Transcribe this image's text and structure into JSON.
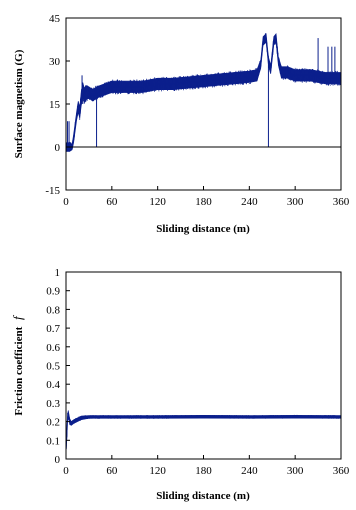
{
  "chart_data": [
    {
      "type": "line",
      "title": "",
      "xlabel": "Sliding distance (m)",
      "ylabel": "Surface magnetism (G)",
      "xlim": [
        0,
        360
      ],
      "ylim": [
        -15,
        45
      ],
      "xticks": [
        0,
        60,
        120,
        180,
        240,
        300,
        360
      ],
      "yticks": [
        -15,
        0,
        15,
        30,
        45
      ],
      "grid": false,
      "line_color": "#0b1f8c",
      "series": [
        {
          "x": [
            0,
            3,
            5,
            8,
            10,
            12,
            14,
            16,
            18,
            20,
            22,
            24,
            26,
            30,
            35,
            40,
            50,
            60,
            80,
            100,
            120,
            140,
            160,
            180,
            200,
            220,
            240,
            250,
            255,
            258,
            262,
            265,
            268,
            272,
            275,
            278,
            282,
            290,
            300,
            320,
            340,
            360
          ],
          "y": [
            0,
            0,
            0,
            0,
            3,
            7,
            11,
            14,
            12,
            17,
            20,
            18,
            19,
            19,
            18,
            19,
            20,
            21,
            21,
            21,
            22,
            22,
            22.5,
            23,
            23.5,
            24,
            24.5,
            25,
            29,
            37,
            38,
            30,
            27,
            37,
            38,
            30,
            26,
            26,
            25,
            25,
            24,
            24
          ],
          "band": [
            3,
            3,
            3,
            2,
            3,
            3,
            3,
            4,
            4,
            5,
            5,
            5,
            5,
            4,
            4,
            4,
            4,
            4,
            4,
            4,
            4,
            4,
            4,
            4,
            4,
            4,
            4,
            4,
            3,
            3,
            3,
            3,
            3,
            3,
            3,
            3,
            4,
            4,
            4,
            4,
            4,
            4
          ],
          "spikes": [
            {
              "x": 2,
              "y": 9
            },
            {
              "x": 4,
              "y": 9
            },
            {
              "x": 21,
              "y": 25
            },
            {
              "x": 22,
              "y": 15
            },
            {
              "x": 40,
              "y": 0
            },
            {
              "x": 265,
              "y": 0
            },
            {
              "x": 330,
              "y": 38
            },
            {
              "x": 343,
              "y": 35
            },
            {
              "x": 348,
              "y": 35
            },
            {
              "x": 352,
              "y": 35
            }
          ]
        }
      ]
    },
    {
      "type": "line",
      "title": "",
      "xlabel": "Sliding distance (m)",
      "ylabel": "Friction coefficient",
      "ylabel_symbol": "f",
      "xlim": [
        0,
        360
      ],
      "ylim": [
        0,
        1
      ],
      "xticks": [
        0,
        60,
        120,
        180,
        240,
        300,
        360
      ],
      "yticks": [
        0,
        0.1,
        0.2,
        0.3,
        0.4,
        0.5,
        0.6,
        0.7,
        0.8,
        0.9,
        1
      ],
      "grid": false,
      "line_color": "#0b1f8c",
      "series": [
        {
          "x": [
            0,
            1,
            2,
            3,
            4,
            5,
            7,
            10,
            15,
            20,
            30,
            60,
            120,
            180,
            240,
            300,
            360
          ],
          "y": [
            0.05,
            0.12,
            0.22,
            0.24,
            0.22,
            0.2,
            0.19,
            0.2,
            0.21,
            0.22,
            0.225,
            0.225,
            0.225,
            0.226,
            0.225,
            0.226,
            0.225
          ],
          "band": [
            0.04,
            0.04,
            0.04,
            0.04,
            0.03,
            0.03,
            0.02,
            0.02,
            0.02,
            0.02,
            0.015,
            0.015,
            0.015,
            0.015,
            0.015,
            0.015,
            0.015
          ],
          "spikes": []
        }
      ]
    }
  ]
}
